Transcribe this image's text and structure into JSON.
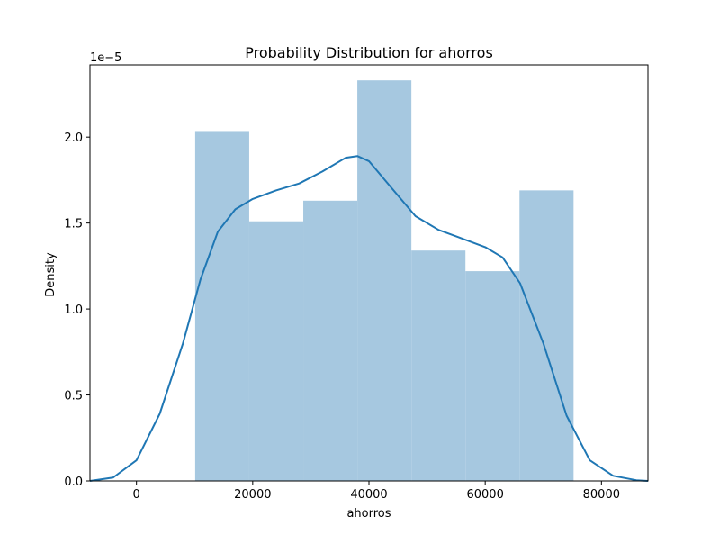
{
  "chart_data": {
    "type": "bar",
    "title": "Probability Distribution for ahorros",
    "xlabel": "ahorros",
    "ylabel": "Density",
    "y_offset_label": "1e−5",
    "xlim": [
      -8000,
      88000
    ],
    "ylim": [
      0,
      2.42e-05
    ],
    "x_ticks": [
      0,
      20000,
      40000,
      60000,
      80000
    ],
    "x_tick_labels": [
      "0",
      "20000",
      "40000",
      "60000",
      "80000"
    ],
    "y_ticks": [
      0,
      5e-06,
      1e-05,
      1.5e-05,
      2e-05
    ],
    "y_tick_labels": [
      "0.0",
      "0.5",
      "1.0",
      "1.5",
      "2.0"
    ],
    "grid": false,
    "series": [
      {
        "kind": "histogram",
        "bins": [
          {
            "x0": 10100,
            "x1": 19400,
            "density": 2.03e-05
          },
          {
            "x0": 19400,
            "x1": 28700,
            "density": 1.51e-05
          },
          {
            "x0": 28700,
            "x1": 38000,
            "density": 1.63e-05
          },
          {
            "x0": 38000,
            "x1": 47300,
            "density": 2.33e-05
          },
          {
            "x0": 47300,
            "x1": 56600,
            "density": 1.34e-05
          },
          {
            "x0": 56600,
            "x1": 65900,
            "density": 1.22e-05
          },
          {
            "x0": 65900,
            "x1": 75200,
            "density": 1.69e-05
          }
        ],
        "color": "#a6c8e0"
      },
      {
        "kind": "kde",
        "color": "#1f77b4",
        "x": [
          -8000,
          -4000,
          0,
          4000,
          8000,
          11000,
          14000,
          17000,
          20000,
          24000,
          28000,
          32000,
          36000,
          38000,
          40000,
          44000,
          48000,
          52000,
          56000,
          60000,
          63000,
          66000,
          70000,
          74000,
          78000,
          82000,
          86000,
          88000
        ],
        "y": [
          0.0,
          2e-07,
          1.2e-06,
          3.9e-06,
          8e-06,
          1.17e-05,
          1.45e-05,
          1.58e-05,
          1.64e-05,
          1.69e-05,
          1.73e-05,
          1.8e-05,
          1.88e-05,
          1.89e-05,
          1.86e-05,
          1.7e-05,
          1.54e-05,
          1.46e-05,
          1.41e-05,
          1.36e-05,
          1.3e-05,
          1.15e-05,
          8e-06,
          3.8e-06,
          1.2e-06,
          3e-07,
          4e-08,
          0.0
        ]
      }
    ]
  }
}
